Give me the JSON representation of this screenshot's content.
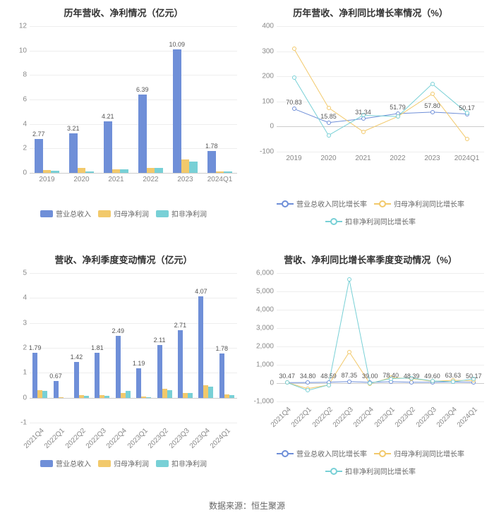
{
  "colors": {
    "series1": "#6f8fd8",
    "series2": "#f2c96b",
    "series3": "#78d0d6",
    "grid": "#eeeeee",
    "axis": "#cccccc",
    "text": "#333333",
    "tick": "#888888",
    "bg": "#ffffff"
  },
  "title_fontsize": 13,
  "tick_fontsize": 10,
  "panels": {
    "tl": {
      "title": "历年营收、净利情况（亿元）",
      "type": "bar",
      "categories": [
        "2019",
        "2020",
        "2021",
        "2022",
        "2023",
        "2024Q1"
      ],
      "ylim": [
        0,
        12
      ],
      "ytick_step": 2,
      "series": [
        {
          "name": "营业总收入",
          "color": "#6f8fd8",
          "values": [
            2.77,
            3.21,
            4.21,
            6.39,
            10.09,
            1.78
          ],
          "labels": [
            "2.77",
            "3.21",
            "4.21",
            "6.39",
            "10.09",
            "1.78"
          ]
        },
        {
          "name": "归母净利润",
          "color": "#f2c96b",
          "values": [
            0.22,
            0.38,
            0.3,
            0.42,
            1.1,
            0.12
          ]
        },
        {
          "name": "扣非净利润",
          "color": "#78d0d6",
          "values": [
            0.18,
            0.12,
            0.28,
            0.4,
            0.95,
            0.1
          ]
        }
      ],
      "bar_group_width": 0.72
    },
    "tr": {
      "title": "历年营收、净利同比增长率情况（%）",
      "type": "line",
      "categories": [
        "2019",
        "2020",
        "2021",
        "2022",
        "2023",
        "2024Q1"
      ],
      "ylim": [
        -100,
        400
      ],
      "ytick_step": 100,
      "series": [
        {
          "name": "营业总收入同比增长率",
          "color": "#6f8fd8",
          "values": [
            70.83,
            15.85,
            31.34,
            51.79,
            57.8,
            50.17
          ]
        },
        {
          "name": "归母净利润同比增长率",
          "color": "#f2c96b",
          "values": [
            310,
            75,
            -20,
            40,
            130,
            -50
          ]
        },
        {
          "name": "扣非净利润同比增长率",
          "color": "#78d0d6",
          "values": [
            195,
            -35,
            45,
            40,
            170,
            55
          ]
        }
      ],
      "point_labels": {
        "series": 0,
        "labels": [
          "70.83",
          "15.85",
          "31.34",
          "51.79",
          "57.80",
          "50.17"
        ]
      }
    },
    "bl": {
      "title": "营收、净利季度变动情况（亿元）",
      "type": "bar",
      "categories": [
        "2021Q4",
        "2022Q1",
        "2022Q2",
        "2022Q3",
        "2022Q4",
        "2023Q1",
        "2023Q2",
        "2023Q3",
        "2023Q4",
        "2024Q1"
      ],
      "rotate_x": true,
      "ylim": [
        -1,
        5
      ],
      "ytick_step": 1,
      "series": [
        {
          "name": "营业总收入",
          "color": "#6f8fd8",
          "values": [
            1.79,
            0.67,
            1.42,
            1.81,
            2.49,
            1.19,
            2.11,
            2.71,
            4.07,
            1.78
          ],
          "labels": [
            "1.79",
            "0.67",
            "1.42",
            "1.81",
            "2.49",
            "1.19",
            "2.11",
            "2.71",
            "4.07",
            "1.78"
          ]
        },
        {
          "name": "归母净利润",
          "color": "#f2c96b",
          "values": [
            0.3,
            0.02,
            0.1,
            0.1,
            0.2,
            0.05,
            0.35,
            0.2,
            0.5,
            0.12
          ]
        },
        {
          "name": "扣非净利润",
          "color": "#78d0d6",
          "values": [
            0.28,
            -0.02,
            0.08,
            0.08,
            0.26,
            0.03,
            0.3,
            0.18,
            0.44,
            0.1
          ]
        }
      ],
      "bar_group_width": 0.72
    },
    "br": {
      "title": "营收、净利同比增长率季度变动情况（%）",
      "type": "line",
      "categories": [
        "2021Q4",
        "2022Q1",
        "2022Q2",
        "2022Q3",
        "2022Q4",
        "2023Q1",
        "2023Q2",
        "2023Q3",
        "2023Q4",
        "2024Q1"
      ],
      "rotate_x": true,
      "ylim": [
        -1000,
        6000
      ],
      "ytick_step": 1000,
      "series": [
        {
          "name": "营业总收入同比增长率",
          "color": "#6f8fd8",
          "values": [
            30.47,
            34.8,
            48.59,
            87.35,
            39.0,
            78.4,
            48.39,
            49.6,
            63.63,
            50.17
          ]
        },
        {
          "name": "归母净利润同比增长率",
          "color": "#f2c96b",
          "values": [
            30,
            -300,
            -100,
            1700,
            -33,
            300,
            250,
            100,
            150,
            140
          ]
        },
        {
          "name": "扣非净利润同比增长率",
          "color": "#78d0d6",
          "values": [
            30,
            -400,
            -100,
            5650,
            -7,
            250,
            275,
            125,
            69,
            233
          ]
        }
      ],
      "point_labels": {
        "series": 0,
        "labels": [
          "30.47",
          "34.80",
          "48.59",
          "87.35",
          "39.00",
          "78.40",
          "48.39",
          "49.60",
          "63.63",
          "50.17"
        ]
      }
    }
  },
  "legend_bar": [
    "营业总收入",
    "归母净利润",
    "扣非净利润"
  ],
  "legend_line": [
    "营业总收入同比增长率",
    "归母净利润同比增长率",
    "扣非净利润同比增长率"
  ],
  "source": "数据来源：恒生聚源"
}
